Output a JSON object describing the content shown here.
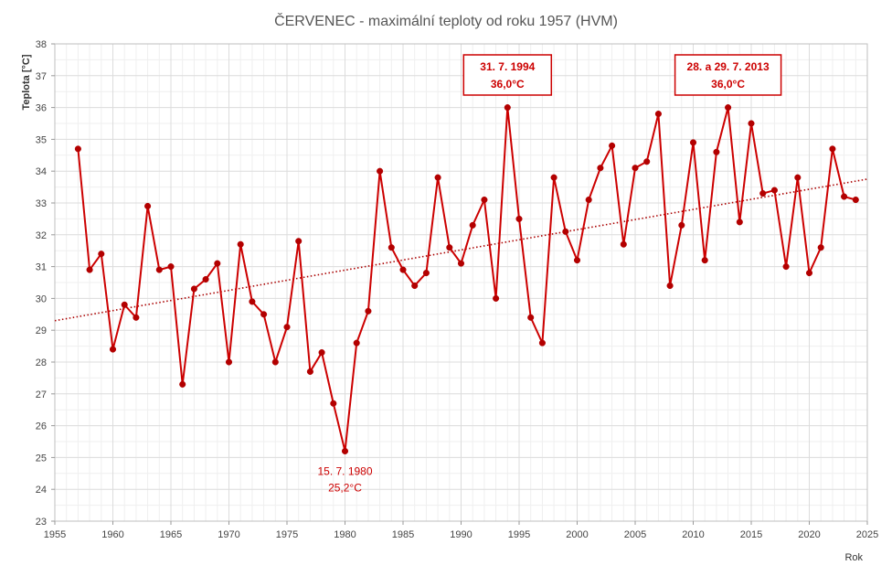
{
  "chart_data": {
    "type": "line",
    "title": "ČERVENEC - maximální teploty od roku 1957 (HVM)",
    "xlabel": "Rok",
    "ylabel": "Teplota [°C]",
    "xlim": [
      1955,
      2025
    ],
    "ylim": [
      23,
      38
    ],
    "x_ticks": [
      "1955",
      "1960",
      "1965",
      "1970",
      "1975",
      "1980",
      "1985",
      "1990",
      "1995",
      "2000",
      "2005",
      "2010",
      "2015",
      "2020",
      "2025"
    ],
    "y_ticks": [
      "23",
      "24",
      "25",
      "26",
      "27",
      "28",
      "29",
      "30",
      "31",
      "32",
      "33",
      "34",
      "35",
      "36",
      "37",
      "38"
    ],
    "grid": true,
    "legend": "none",
    "series": [
      {
        "color": "#cc0000",
        "x": [
          1957,
          1958,
          1959,
          1960,
          1961,
          1962,
          1963,
          1964,
          1965,
          1966,
          1967,
          1968,
          1969,
          1970,
          1971,
          1972,
          1973,
          1974,
          1975,
          1976,
          1977,
          1978,
          1979,
          1980,
          1981,
          1982,
          1983,
          1984,
          1985,
          1986,
          1987,
          1988,
          1989,
          1990,
          1991,
          1992,
          1993,
          1994,
          1995,
          1996,
          1997,
          1998,
          1999,
          2000,
          2001,
          2002,
          2003,
          2004,
          2005,
          2006,
          2007,
          2008,
          2009,
          2010,
          2011,
          2012,
          2013,
          2014,
          2015,
          2016,
          2017,
          2018,
          2019,
          2020,
          2021,
          2022,
          2023,
          2024
        ],
        "values": [
          34.7,
          30.9,
          31.4,
          28.4,
          29.8,
          29.4,
          32.9,
          30.9,
          31.0,
          27.3,
          30.3,
          30.6,
          31.1,
          28.0,
          31.7,
          29.9,
          29.5,
          28.0,
          29.1,
          31.8,
          27.7,
          28.3,
          26.7,
          25.2,
          28.6,
          29.6,
          34.0,
          31.6,
          30.9,
          30.4,
          30.8,
          33.8,
          31.6,
          31.1,
          32.3,
          33.1,
          30.0,
          36.0,
          32.5,
          29.4,
          28.6,
          33.8,
          32.1,
          31.2,
          33.1,
          34.1,
          34.8,
          31.7,
          34.1,
          34.3,
          35.8,
          30.4,
          32.3,
          34.9,
          31.2,
          34.6,
          36.0,
          32.4,
          35.5,
          33.3,
          33.4,
          31.0,
          33.8,
          30.8,
          31.6,
          34.7,
          33.2,
          33.1
        ]
      }
    ],
    "trendline": {
      "type": "linear",
      "color": "#aa0000",
      "style": "dotted",
      "start": [
        1955,
        29.3
      ],
      "end": [
        2025,
        33.75
      ]
    },
    "annotations": [
      {
        "year": 1994,
        "value": 36.0,
        "lines": [
          "31. 7. 1994",
          "36,0°C"
        ],
        "boxed": true
      },
      {
        "year": 2013,
        "value": 36.0,
        "lines": [
          "28. a 29. 7. 2013",
          "36,0°C"
        ],
        "boxed": true
      },
      {
        "year": 1980,
        "value": 25.2,
        "lines": [
          "15. 7. 1980",
          "25,2°C"
        ],
        "boxed": false
      }
    ]
  }
}
